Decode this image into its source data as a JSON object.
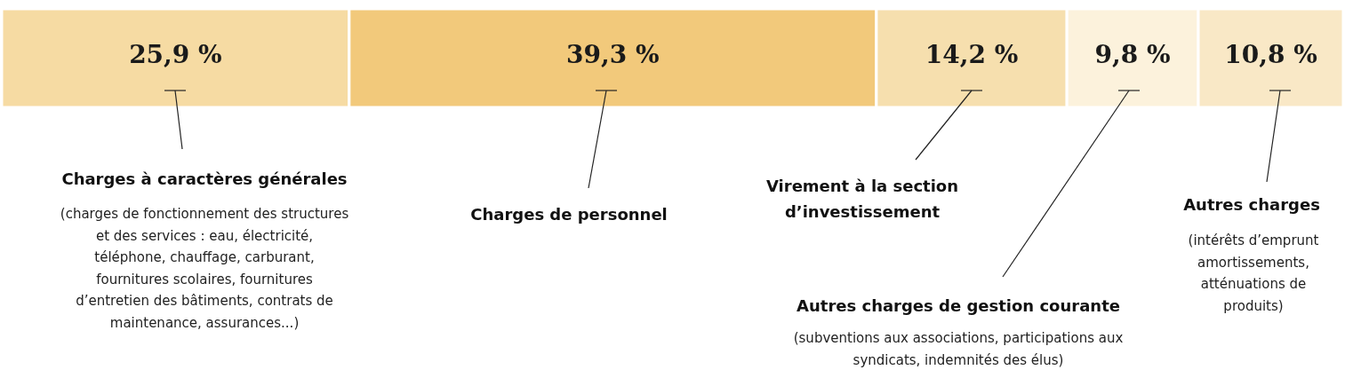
{
  "chart_data": {
    "type": "bar",
    "orientation": "horizontal",
    "stacked": true,
    "categories": [
      null
    ],
    "series": [
      {
        "name": "Charges à caractères générales",
        "color": "#f6dba3",
        "values": [
          25.9
        ],
        "value_labels": [
          "25,9 %"
        ]
      },
      {
        "name": "Charges de personnel",
        "color": "#f2c97b",
        "values": [
          39.3
        ],
        "value_labels": [
          "39,3 %"
        ]
      },
      {
        "name": "Virement à la section d’investissement",
        "color": "#f6dfae",
        "values": [
          14.2
        ],
        "value_labels": [
          "14,2 %"
        ]
      },
      {
        "name": "Autres charges de gestion courante",
        "color": "#fcf2dc",
        "values": [
          9.8
        ],
        "value_labels": [
          "9,8 %"
        ]
      },
      {
        "name": "Autres charges",
        "color": "#f9e8c6",
        "values": [
          10.8
        ],
        "value_labels": [
          "10,8 %"
        ]
      }
    ],
    "annotations": [
      "(charges de fonctionnement des structures et des services : eau, électricité, téléphone, chauffage, carburant, fournitures scolaires, fournitures d’entretien des bâtiments, contrats de maintenance, assurances...)",
      "(subventions aux associations, participations aux syndicats, indemnités des élus)",
      "(intérêts d’emprunt amortissements, atténuations de produits)"
    ]
  }
}
